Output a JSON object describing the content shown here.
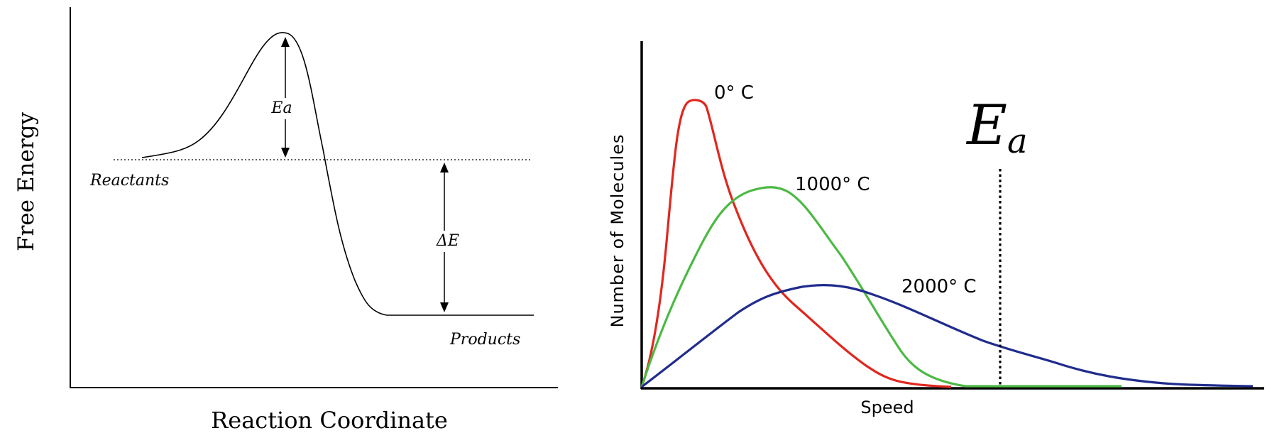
{
  "energy_diagram": {
    "ylabel": "Free Energy",
    "xlabel": "Reaction Coordinate",
    "reactants_label": "Reactants",
    "products_label": "Products",
    "activation_label": "Ea",
    "delta_label": "ΔE"
  },
  "distribution_chart": {
    "ylabel": "Number of Molecules",
    "xlabel": "Speed",
    "threshold_label_main": "E",
    "threshold_label_sub": "a",
    "series": [
      {
        "name": "0° C",
        "color": "#e0271f"
      },
      {
        "name": "1000° C",
        "color": "#4cb944"
      },
      {
        "name": "2000° C",
        "color": "#202c8c"
      }
    ]
  }
}
